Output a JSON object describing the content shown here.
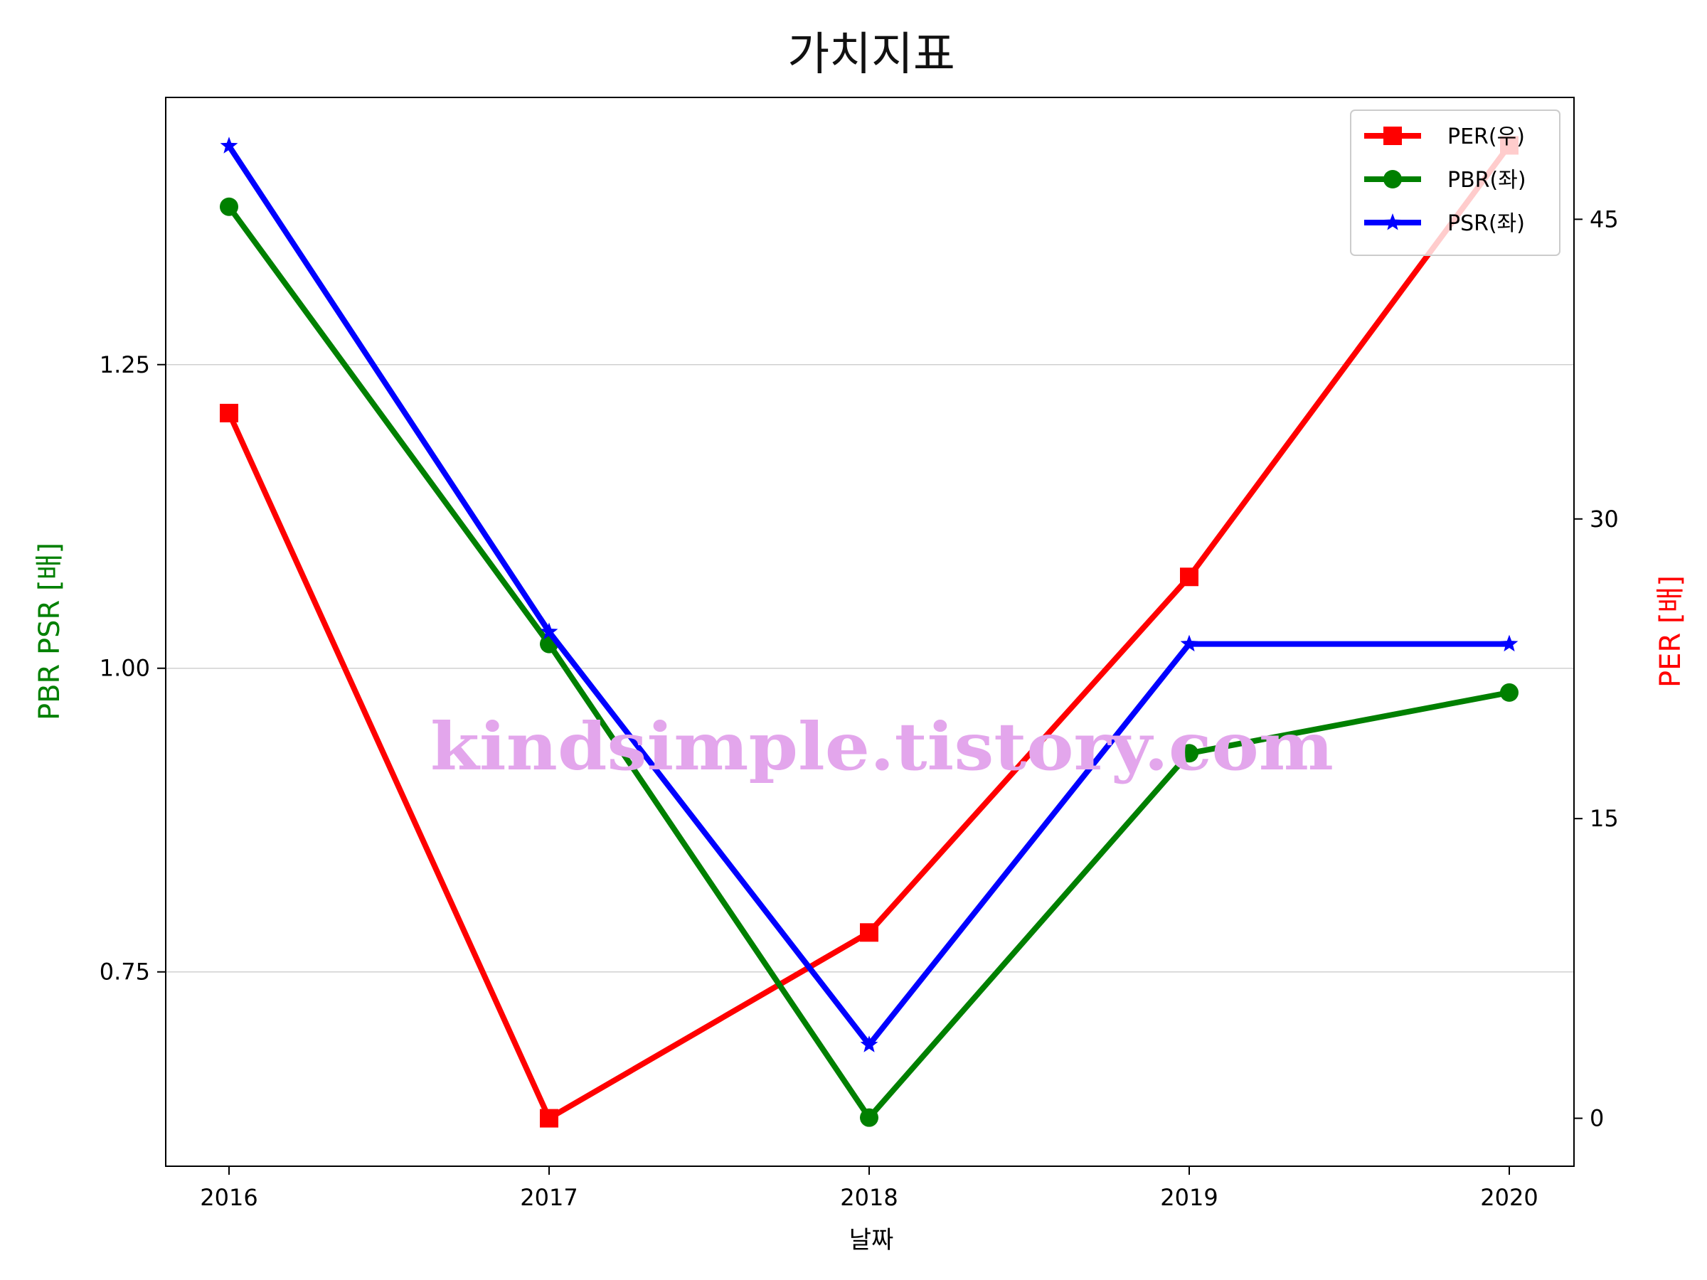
{
  "chart_data": {
    "type": "line",
    "title": "가치지표",
    "xlabel": "날짜",
    "ylabel_left": "PBR PSR [배]",
    "ylabel_right": "PER [배]",
    "categories": [
      "2016",
      "2017",
      "2018",
      "2019",
      "2020"
    ],
    "ylim_left": [
      0.59,
      1.47
    ],
    "yticks_left": [
      0.75,
      1.0,
      1.25
    ],
    "ytick_labels_left": [
      "0.75",
      "1.00",
      "1.25"
    ],
    "ylim_right": [
      -2.4,
      51.1
    ],
    "yticks_right": [
      0,
      15,
      30,
      45
    ],
    "ytick_labels_right": [
      "0",
      "15",
      "30",
      "45"
    ],
    "grid": "horizontal (left axis)",
    "legend_position": "top-right",
    "series": [
      {
        "name": "PER(우)",
        "axis": "right",
        "color": "#ff0000",
        "marker": "square",
        "values": [
          35.3,
          0.0,
          9.3,
          27.1,
          48.7
        ]
      },
      {
        "name": "PBR(좌)",
        "axis": "left",
        "color": "#008000",
        "marker": "circle",
        "values": [
          1.38,
          1.02,
          0.63,
          0.93,
          0.98
        ]
      },
      {
        "name": "PSR(좌)",
        "axis": "left",
        "color": "#0000ff",
        "marker": "star",
        "values": [
          1.43,
          1.03,
          0.69,
          1.02,
          1.02
        ]
      }
    ]
  },
  "watermark": "kindsimple.tistory.com"
}
